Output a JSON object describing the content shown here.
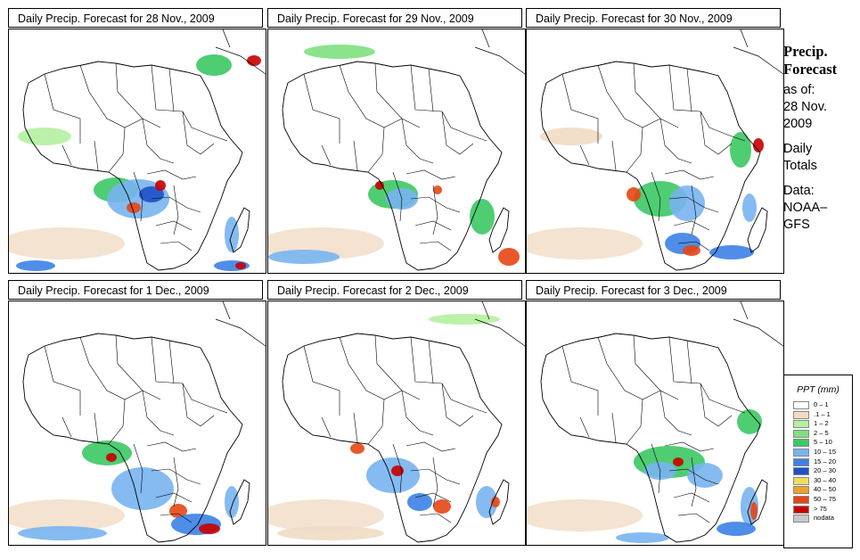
{
  "panels": [
    {
      "title": "Daily Precip. Forecast for  28 Nov., 2009"
    },
    {
      "title": "Daily Precip. Forecast for  29 Nov., 2009"
    },
    {
      "title": "Daily Precip. Forecast for  30 Nov., 2009"
    },
    {
      "title": "Daily Precip. Forecast for  1 Dec., 2009"
    },
    {
      "title": "Daily Precip. Forecast for  2 Dec., 2009"
    },
    {
      "title": "Daily Precip. Forecast for  3 Dec., 2009"
    }
  ],
  "sidebar": {
    "title_line1": "Precip.",
    "title_line2": "Forecast",
    "asof_line1": "as of:",
    "asof_line2": "28 Nov.",
    "asof_line3": "2009",
    "daily_line1": "Daily",
    "daily_line2": "Totals",
    "data_line1": "Data:",
    "data_line2": "NOAA–",
    "data_line3": "GFS"
  },
  "legend": {
    "title": "PPT (mm)",
    "items": [
      {
        "label": "0 – 1",
        "color": "#ffffff"
      },
      {
        "label": ".1 – 1",
        "color": "#f0dcc4"
      },
      {
        "label": "1 – 2",
        "color": "#b4f0a0"
      },
      {
        "label": "2 – 5",
        "color": "#7ee07e"
      },
      {
        "label": "5 – 10",
        "color": "#3cc864"
      },
      {
        "label": "10 – 15",
        "color": "#78b4f0"
      },
      {
        "label": "15 – 20",
        "color": "#3c82e6"
      },
      {
        "label": "20 – 30",
        "color": "#1e50c8"
      },
      {
        "label": "30 – 40",
        "color": "#f0dc64"
      },
      {
        "label": "40 – 50",
        "color": "#f0a028"
      },
      {
        "label": "50 – 75",
        "color": "#e64614"
      },
      {
        "label": "> 75",
        "color": "#c80000"
      },
      {
        "label": "nodata",
        "color": "#c8c8c8"
      }
    ]
  }
}
